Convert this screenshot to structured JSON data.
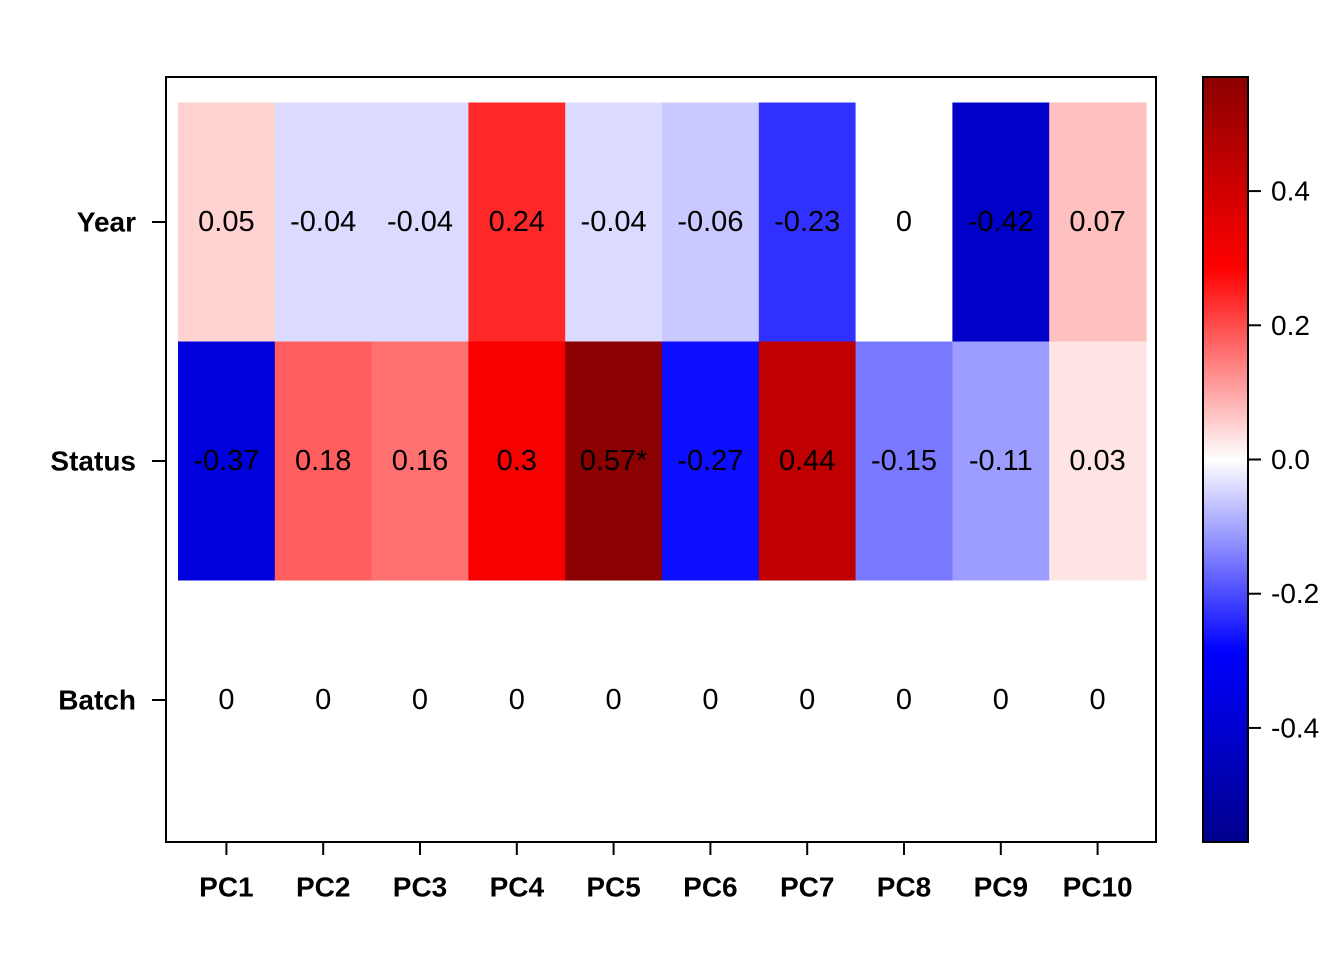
{
  "chart_data": {
    "type": "heatmap",
    "title": "",
    "xlabel": "",
    "ylabel": "",
    "columns": [
      "PC1",
      "PC2",
      "PC3",
      "PC4",
      "PC5",
      "PC6",
      "PC7",
      "PC8",
      "PC9",
      "PC10"
    ],
    "rows": [
      "Year",
      "Status",
      "Batch"
    ],
    "values": [
      [
        0.05,
        -0.04,
        -0.04,
        0.24,
        -0.04,
        -0.06,
        -0.23,
        0,
        -0.42,
        0.07
      ],
      [
        -0.37,
        0.18,
        0.16,
        0.3,
        0.57,
        -0.27,
        0.44,
        -0.15,
        -0.11,
        0.03
      ],
      [
        0,
        0,
        0,
        0,
        0,
        0,
        0,
        0,
        0,
        0
      ]
    ],
    "cell_labels": [
      [
        "0.05",
        "-0.04",
        "-0.04",
        "0.24",
        "-0.04",
        "-0.06",
        "-0.23",
        "0",
        "-0.42",
        "0.07"
      ],
      [
        "-0.37",
        "0.18",
        "0.16",
        "0.3",
        "0.57*",
        "-0.27",
        "0.44",
        "-0.15",
        "-0.11",
        "0.03"
      ],
      [
        "0",
        "0",
        "0",
        "0",
        "0",
        "0",
        "0",
        "0",
        "0",
        "0"
      ]
    ],
    "color_scale": {
      "min": -0.57,
      "max": 0.57,
      "colors": [
        "#00008b",
        "#0000ff",
        "#ffffff",
        "#ff0000",
        "#8b0000"
      ],
      "ticks": [
        -0.4,
        -0.2,
        0.0,
        0.2,
        0.4
      ],
      "tick_labels": [
        "-0.4",
        "-0.2",
        "0.0",
        "0.2",
        "0.4"
      ]
    },
    "legend_placement": "right",
    "grid": false
  }
}
